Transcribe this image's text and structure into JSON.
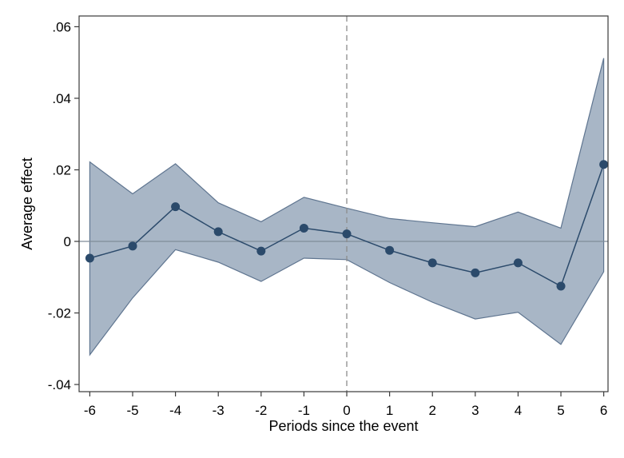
{
  "chart_data": {
    "type": "line",
    "title": "",
    "xlabel": "Periods since the event",
    "ylabel": "Average effect",
    "x": [
      -6,
      -5,
      -4,
      -3,
      -2,
      -1,
      0,
      1,
      2,
      3,
      4,
      5,
      6
    ],
    "xticks": [
      "-6",
      "-5",
      "-4",
      "-3",
      "-2",
      "-1",
      "0",
      "1",
      "2",
      "3",
      "4",
      "5",
      "6"
    ],
    "yticks": [
      {
        "value": 0.06,
        "label": ".06"
      },
      {
        "value": 0.04,
        "label": ".04"
      },
      {
        "value": 0.02,
        "label": ".02"
      },
      {
        "value": 0,
        "label": "0"
      },
      {
        "value": -0.02,
        "label": "-.02"
      },
      {
        "value": -0.04,
        "label": "-.04"
      }
    ],
    "xlim": [
      -6.25,
      6.1
    ],
    "ylim": [
      -0.042,
      0.063
    ],
    "series": [
      {
        "values": [
          -0.0047,
          -0.0013,
          0.0097,
          0.0027,
          -0.0027,
          0.0037,
          0.0021,
          -0.0025,
          -0.006,
          -0.0088,
          -0.006,
          -0.0125,
          0.0215
        ],
        "ci_lower": [
          -0.0317,
          -0.0158,
          -0.0023,
          -0.0058,
          -0.0112,
          -0.0047,
          -0.0051,
          -0.0115,
          -0.017,
          -0.0217,
          -0.0198,
          -0.0288,
          -0.0085
        ],
        "ci_upper": [
          0.0222,
          0.0133,
          0.0217,
          0.0108,
          0.0055,
          0.0123,
          0.0093,
          0.0064,
          0.0052,
          0.0041,
          0.0082,
          0.0037,
          0.0512
        ]
      }
    ],
    "reference_lines": [
      {
        "orientation": "horizontal",
        "value": 0,
        "style": "solid"
      },
      {
        "orientation": "vertical",
        "value": 0,
        "style": "dashed"
      }
    ],
    "grid": false,
    "colors": {
      "line": "#2b4a6b",
      "marker": "#2b4a6b",
      "band_fill": "#a8b6c6",
      "band_edge": "#5f7590",
      "zero_line": "#7f8c99",
      "dashed_line": "#8c8c8c",
      "frame": "#3a3a3a"
    }
  }
}
